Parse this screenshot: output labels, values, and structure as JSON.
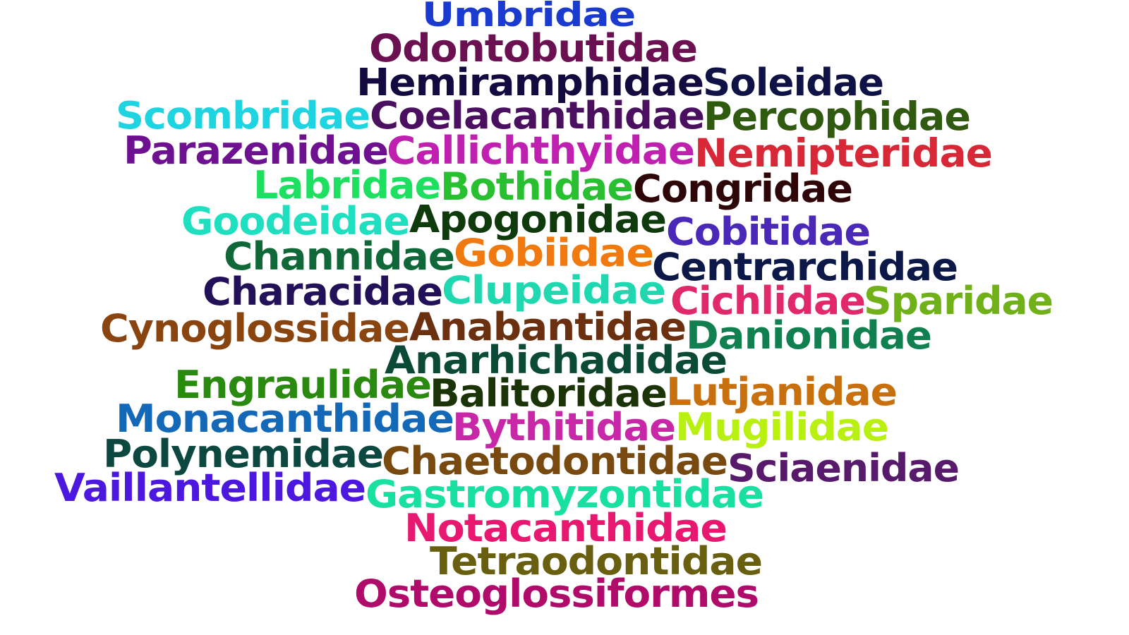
{
  "words": [
    {
      "text": "Umbridae",
      "color": "#1a3ad0"
    },
    {
      "text": "Odontobutidae",
      "color": "#6b1050"
    },
    {
      "text": "Hemiramphidae",
      "color": "#150a40"
    },
    {
      "text": "Soleidae",
      "color": "#0e1245"
    },
    {
      "text": "Scombridae",
      "color": "#1dd4e0"
    },
    {
      "text": "Coelacanthidae",
      "color": "#4a0f5e"
    },
    {
      "text": "Percophidae",
      "color": "#2f5a10"
    },
    {
      "text": "Parazenidae",
      "color": "#6e1190"
    },
    {
      "text": "Callichthyidae",
      "color": "#c020b0"
    },
    {
      "text": "Nemipteridae",
      "color": "#d82838"
    },
    {
      "text": "Labridae",
      "color": "#1ee060"
    },
    {
      "text": "Bothidae",
      "color": "#28c030"
    },
    {
      "text": "Congridae",
      "color": "#2e0608"
    },
    {
      "text": "Goodeidae",
      "color": "#1ee0c0"
    },
    {
      "text": "Apogonidae",
      "color": "#0e3a0c"
    },
    {
      "text": "Cobitidae",
      "color": "#4a28b8"
    },
    {
      "text": "Channidae",
      "color": "#106838"
    },
    {
      "text": "Gobiidae",
      "color": "#f07a10"
    },
    {
      "text": "Centrarchidae",
      "color": "#0c1848"
    },
    {
      "text": "Characidae",
      "color": "#221058"
    },
    {
      "text": "Clupeidae",
      "color": "#20d8b0"
    },
    {
      "text": "Cichlidae",
      "color": "#e0286a"
    },
    {
      "text": "Sparidae",
      "color": "#70b018"
    },
    {
      "text": "Cynoglossidae",
      "color": "#8a4410"
    },
    {
      "text": "Anabantidae",
      "color": "#6a3010"
    },
    {
      "text": "Danionidae",
      "color": "#108050"
    },
    {
      "text": "Anarhichadidae",
      "color": "#0c4a38"
    },
    {
      "text": "Engraulidae",
      "color": "#2a8a10"
    },
    {
      "text": "Balitoridae",
      "color": "#1a3408"
    },
    {
      "text": "Lutjanidae",
      "color": "#c8700e"
    },
    {
      "text": "Monacanthidae",
      "color": "#1468b8"
    },
    {
      "text": "Bythitidae",
      "color": "#c828a8"
    },
    {
      "text": "Mugilidae",
      "color": "#b8f010"
    },
    {
      "text": "Polynemidae",
      "color": "#0c4840"
    },
    {
      "text": "Chaetodontidae",
      "color": "#784a10"
    },
    {
      "text": "Sciaenidae",
      "color": "#581a6a"
    },
    {
      "text": "Vaillantellidae",
      "color": "#4c18e0"
    },
    {
      "text": "Gastromyzontidae",
      "color": "#18e0a0"
    },
    {
      "text": "Notacanthidae",
      "color": "#e81870"
    },
    {
      "text": "Tetraodontidae",
      "color": "#686010"
    },
    {
      "text": "Osteoglossiformes",
      "color": "#b00a6a"
    }
  ]
}
